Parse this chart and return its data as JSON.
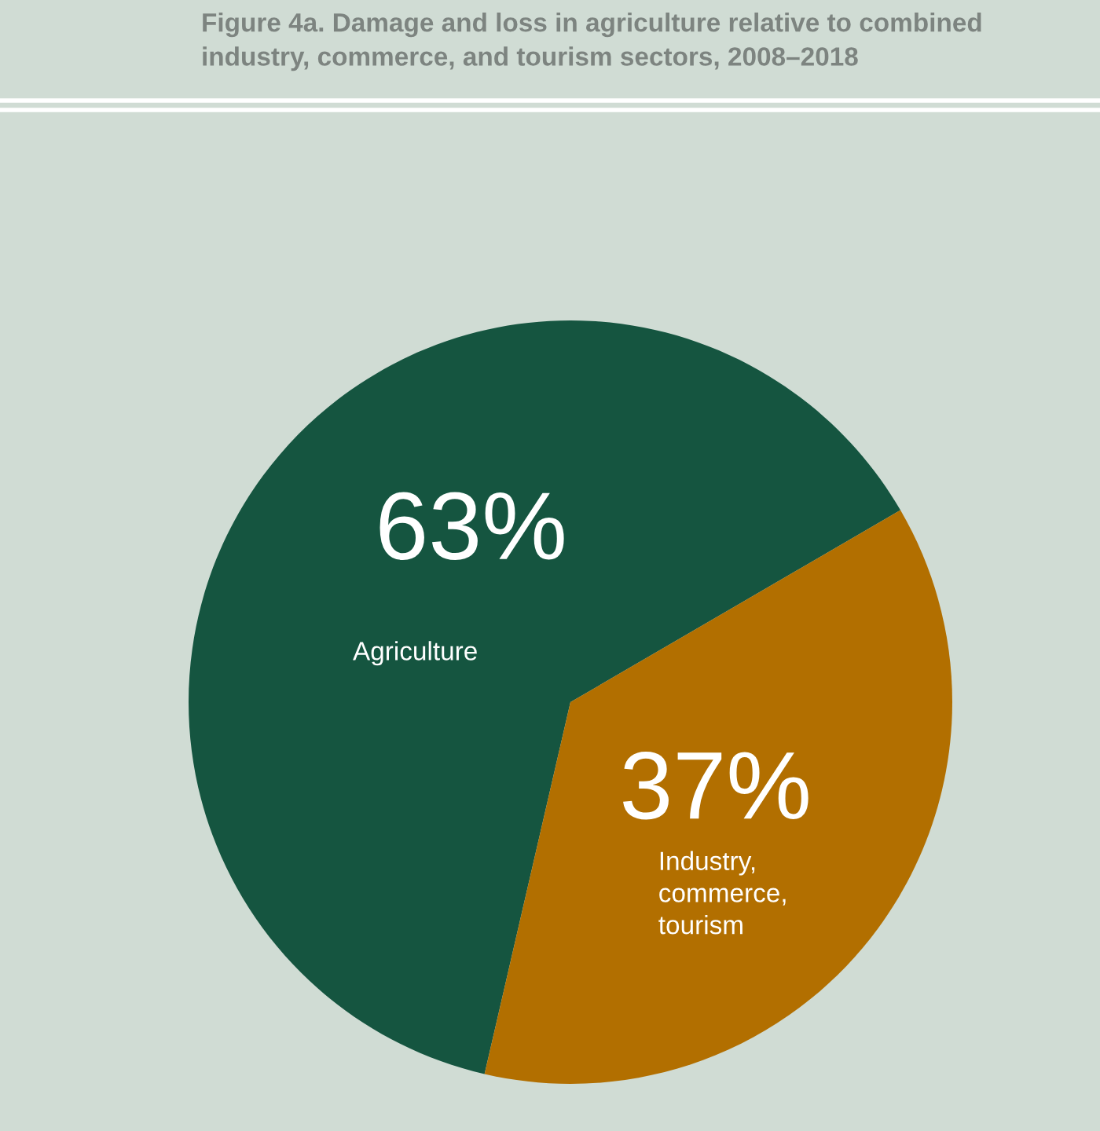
{
  "chart_data": {
    "type": "pie",
    "title": "Figure 4a. Damage and loss in agriculture relative to combined\nindustry, commerce, and tourism sectors, 2008–2018",
    "categories": [
      "Agriculture",
      "Industry,\ncommerce,\ntourism"
    ],
    "values": [
      63,
      37
    ],
    "colors": [
      "#155540",
      "#b26f00"
    ],
    "value_labels": [
      "63%",
      "37%"
    ]
  }
}
